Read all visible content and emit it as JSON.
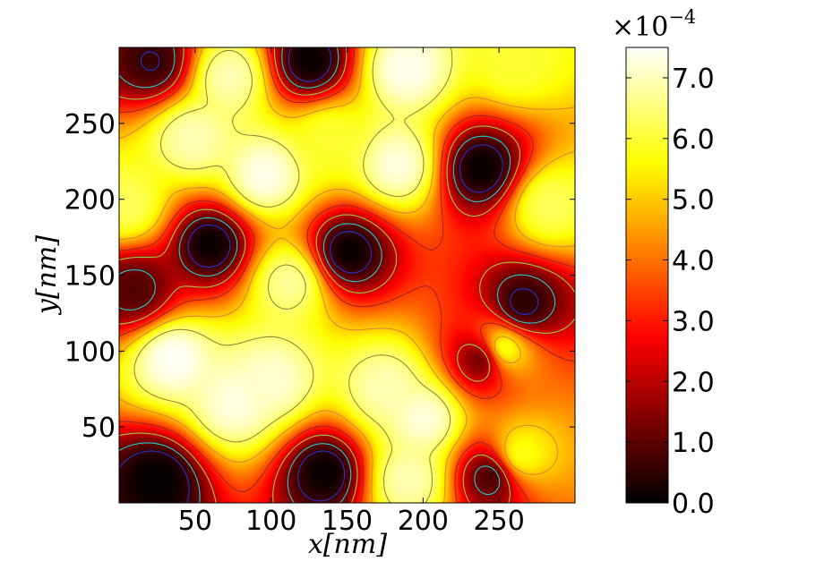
{
  "chart_data": {
    "type": "heatmap",
    "colormap": "hot",
    "xlabel": "x[nm]",
    "ylabel": "y[nm]",
    "xlim": [
      0,
      300
    ],
    "ylim": [
      0,
      300
    ],
    "x_ticks": [
      50,
      100,
      150,
      200,
      250
    ],
    "y_ticks": [
      50,
      100,
      150,
      200,
      250
    ],
    "x_tick_labels": [
      "50",
      "100",
      "150",
      "200",
      "250"
    ],
    "y_tick_labels": [
      "50",
      "100",
      "150",
      "200",
      "250"
    ],
    "colorbar": {
      "range": [
        0.0,
        7.5
      ],
      "multiplier": "×10",
      "exponent": "−4",
      "ticks": [
        0.0,
        1.0,
        2.0,
        3.0,
        4.0,
        5.0,
        6.0,
        7.0
      ],
      "tick_labels": [
        "0.0",
        "1.0",
        "2.0",
        "3.0",
        "4.0",
        "5.0",
        "6.0",
        "7.0"
      ],
      "unit_scale": 0.0001
    },
    "contour_levels": [
      0.6,
      1.2,
      2.2,
      3.4,
      5.0,
      6.4
    ],
    "features": [
      {
        "kind": "peak",
        "x": 35,
        "y": 95,
        "value": 7.5
      },
      {
        "kind": "peak",
        "x": 75,
        "y": 65,
        "value": 7.3
      },
      {
        "kind": "peak",
        "x": 100,
        "y": 80,
        "value": 7.2
      },
      {
        "kind": "peak",
        "x": 175,
        "y": 75,
        "value": 7.0
      },
      {
        "kind": "peak",
        "x": 200,
        "y": 55,
        "value": 7.3
      },
      {
        "kind": "peak",
        "x": 190,
        "y": 15,
        "value": 7.0
      },
      {
        "kind": "peak",
        "x": 95,
        "y": 215,
        "value": 7.4
      },
      {
        "kind": "peak",
        "x": 72,
        "y": 280,
        "value": 7.0
      },
      {
        "kind": "peak",
        "x": 188,
        "y": 285,
        "value": 7.4
      },
      {
        "kind": "peak",
        "x": 183,
        "y": 222,
        "value": 7.3
      },
      {
        "kind": "peak",
        "x": 48,
        "y": 240,
        "value": 7.0
      },
      {
        "kind": "peak",
        "x": 112,
        "y": 145,
        "value": 6.8
      },
      {
        "kind": "peak",
        "x": 250,
        "y": 100,
        "value": 6.8
      },
      {
        "kind": "peak",
        "x": 282,
        "y": 195,
        "value": 6.3
      },
      {
        "kind": "peak",
        "x": 5,
        "y": 195,
        "value": 6.3
      },
      {
        "kind": "peak",
        "x": 262,
        "y": 30,
        "value": 6.0
      },
      {
        "kind": "peak",
        "x": 260,
        "y": 290,
        "value": 6.0
      },
      {
        "kind": "peak",
        "x": 138,
        "y": 240,
        "value": 6.0
      },
      {
        "kind": "valley",
        "x": 135,
        "y": 20,
        "value": 0.0
      },
      {
        "kind": "valley",
        "x": 25,
        "y": 15,
        "value": 0.0
      },
      {
        "kind": "valley",
        "x": 60,
        "y": 170,
        "value": 0.0
      },
      {
        "kind": "valley",
        "x": 150,
        "y": 165,
        "value": 0.0
      },
      {
        "kind": "valley",
        "x": 238,
        "y": 220,
        "value": 0.0
      },
      {
        "kind": "valley",
        "x": 265,
        "y": 130,
        "value": 0.3
      },
      {
        "kind": "valley",
        "x": 125,
        "y": 290,
        "value": 0.0
      },
      {
        "kind": "valley",
        "x": 22,
        "y": 290,
        "value": 0.5
      },
      {
        "kind": "valley",
        "x": 240,
        "y": 95,
        "value": 0.3
      },
      {
        "kind": "valley",
        "x": 245,
        "y": 18,
        "value": 0.5
      },
      {
        "kind": "valley",
        "x": 10,
        "y": 140,
        "value": 0.8
      }
    ]
  }
}
